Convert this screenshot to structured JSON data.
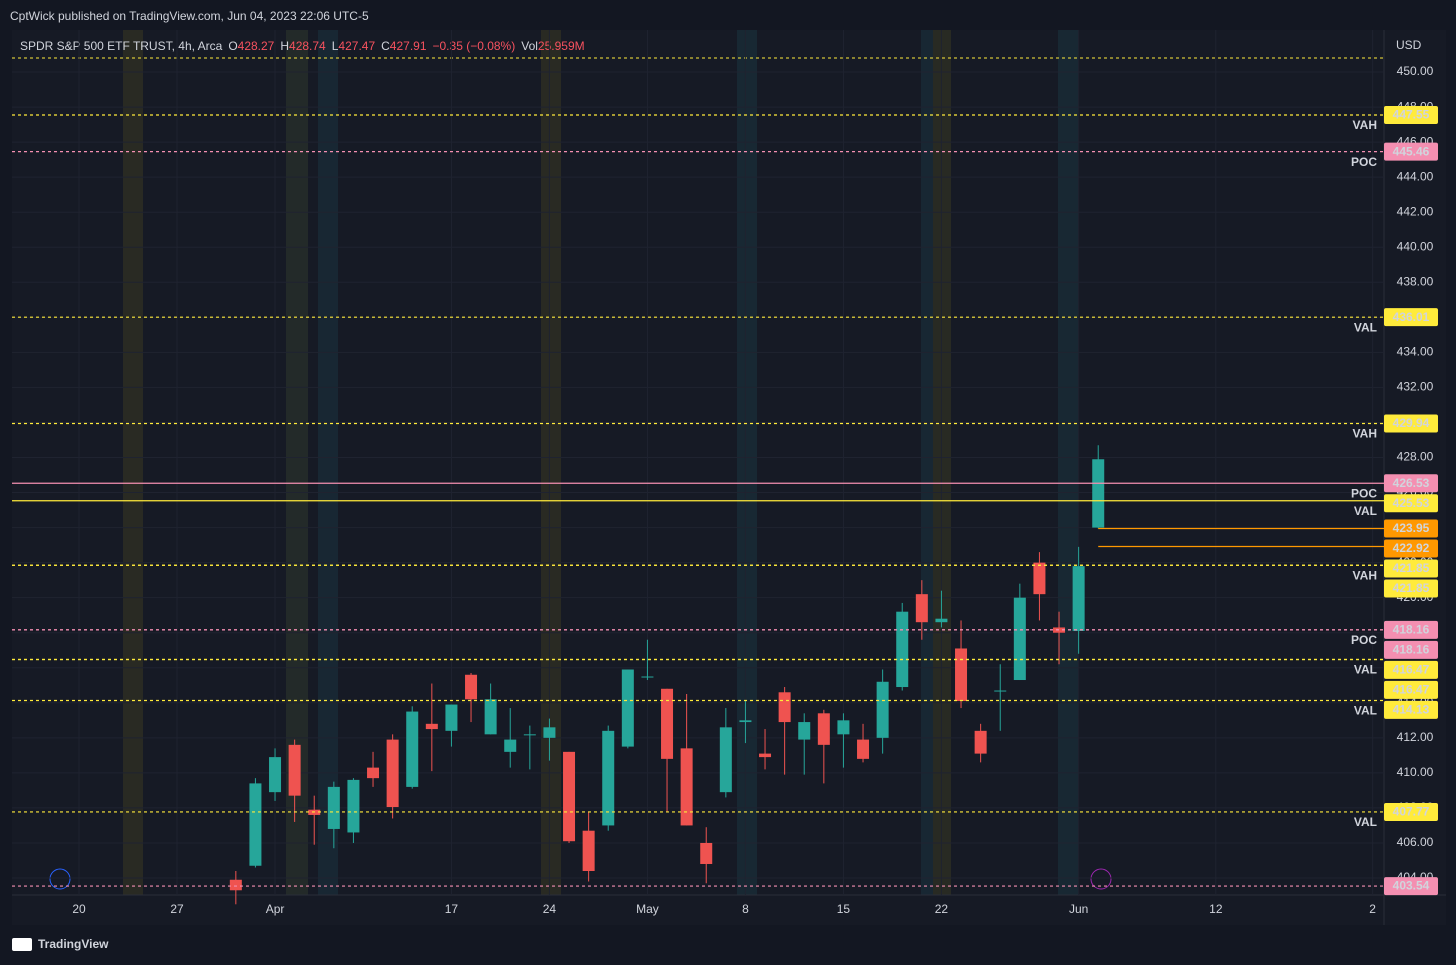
{
  "header": {
    "publisher": "CptWick published on TradingView.com, Jun 04, 2023 22:06 UTC-5"
  },
  "footer": {
    "brand": "TradingView"
  },
  "chart_data": {
    "type": "candlestick",
    "symbol": "SPDR S&P 500 ETF TRUST, 4h, Arca",
    "legend": {
      "o_label": "O",
      "open": 428.27,
      "h_label": "H",
      "high": 428.74,
      "l_label": "L",
      "low": 427.47,
      "c_label": "C",
      "close": 427.91,
      "change": "−0.35 (−0.08%)",
      "vol_label": "Vol",
      "volume": "25.959M"
    },
    "currency": "USD",
    "up_color": "#26a69a",
    "down_color": "#ef5350",
    "ylim": [
      403.03,
      452.4
    ],
    "yticks": [
      {
        "value": 404,
        "label": "404.00"
      },
      {
        "value": 406,
        "label": "406.00"
      },
      {
        "value": 408,
        "label": "408.00"
      },
      {
        "value": 410,
        "label": "410.00"
      },
      {
        "value": 412,
        "label": "412.00"
      },
      {
        "value": 414,
        "label": "414.00"
      },
      {
        "value": 416,
        "label": "416.00"
      },
      {
        "value": 418,
        "label": "418.00"
      },
      {
        "value": 420,
        "label": "420.00"
      },
      {
        "value": 422,
        "label": "422.00"
      },
      {
        "value": 424,
        "label": "424.00"
      },
      {
        "value": 426,
        "label": "426.00"
      },
      {
        "value": 428,
        "label": "428.00"
      },
      {
        "value": 430,
        "label": "430.00"
      },
      {
        "value": 432,
        "label": "432.00"
      },
      {
        "value": 434,
        "label": "434.00"
      },
      {
        "value": 436,
        "label": "436.00"
      },
      {
        "value": 438,
        "label": "438.00"
      },
      {
        "value": 440,
        "label": "440.00"
      },
      {
        "value": 442,
        "label": "442.00"
      },
      {
        "value": 444,
        "label": "444.00"
      },
      {
        "value": 446,
        "label": "446.00"
      },
      {
        "value": 448,
        "label": "448.00"
      },
      {
        "value": 450,
        "label": "450.00"
      }
    ],
    "xlim": [
      -3.42,
      66.58
    ],
    "xticks": [
      {
        "value": 0,
        "label": "20"
      },
      {
        "value": 5,
        "label": "27"
      },
      {
        "value": 10,
        "label": "Apr"
      },
      {
        "value": 19,
        "label": "17"
      },
      {
        "value": 24,
        "label": "24"
      },
      {
        "value": 29,
        "label": "May"
      },
      {
        "value": 34,
        "label": "8"
      },
      {
        "value": 39,
        "label": "15"
      },
      {
        "value": 44,
        "label": "22"
      },
      {
        "value": 51,
        "label": "Jun"
      },
      {
        "value": 58,
        "label": "12"
      },
      {
        "value": 66,
        "label": "2"
      }
    ],
    "grid": true,
    "x": [
      8,
      9,
      10,
      11,
      12,
      13,
      14,
      15,
      16,
      17,
      18,
      19,
      20,
      21,
      22,
      23,
      24,
      25,
      26,
      27,
      28,
      29,
      30,
      31,
      32,
      33,
      34,
      35,
      36,
      37,
      38,
      39,
      40,
      41,
      42,
      43,
      44,
      45,
      46,
      47,
      48,
      49,
      50,
      51,
      52
    ],
    "open": [
      403.9,
      404.7,
      408.9,
      411.6,
      407.9,
      406.8,
      406.6,
      410.3,
      411.9,
      409.2,
      412.8,
      412.4,
      415.6,
      412.2,
      411.2,
      412.2,
      412.0,
      411.2,
      406.7,
      407.0,
      411.5,
      415.5,
      414.8,
      411.4,
      406.0,
      408.9,
      412.9,
      411.1,
      414.6,
      411.9,
      413.4,
      412.2,
      411.9,
      412.0,
      414.9,
      420.2,
      418.6,
      417.1,
      412.4,
      414.7,
      415.3,
      422.0,
      418.3,
      418.1,
      424.0
    ],
    "high": [
      404.4,
      409.7,
      411.4,
      411.9,
      408.7,
      409.5,
      409.7,
      411.2,
      412.2,
      413.8,
      415.1,
      413.9,
      415.7,
      415.1,
      413.7,
      412.7,
      413.1,
      411.2,
      407.8,
      412.7,
      415.9,
      417.6,
      414.8,
      414.5,
      406.9,
      413.7,
      414.1,
      412.5,
      414.9,
      413.4,
      413.6,
      413.4,
      412.8,
      415.9,
      419.7,
      421.0,
      420.4,
      418.7,
      412.8,
      416.2,
      420.8,
      422.6,
      419.2,
      422.9,
      428.7
    ],
    "low": [
      402.5,
      404.6,
      408.4,
      407.2,
      405.9,
      405.7,
      406.0,
      409.2,
      407.4,
      409.1,
      410.1,
      411.5,
      412.9,
      412.2,
      410.3,
      410.2,
      410.7,
      406.0,
      403.8,
      406.7,
      411.4,
      415.3,
      407.8,
      407.0,
      403.7,
      408.6,
      411.7,
      410.2,
      409.9,
      409.9,
      409.4,
      410.3,
      410.6,
      411.1,
      414.7,
      417.6,
      418.3,
      413.7,
      410.6,
      412.4,
      415.3,
      418.7,
      416.2,
      416.8,
      423.95
    ],
    "close": [
      403.3,
      409.4,
      410.9,
      408.7,
      407.6,
      409.2,
      409.6,
      409.7,
      408.05,
      413.5,
      412.5,
      413.9,
      414.2,
      414.2,
      411.9,
      412.2,
      412.6,
      406.1,
      404.4,
      412.4,
      415.9,
      415.5,
      410.8,
      407.0,
      404.8,
      412.6,
      413.0,
      410.9,
      412.9,
      412.9,
      411.6,
      413.0,
      410.8,
      415.2,
      419.2,
      418.6,
      418.8,
      414.1,
      411.1,
      414.7,
      420.0,
      420.2,
      418.0,
      421.8,
      427.9
    ],
    "levels": [
      {
        "price": 447.55,
        "style": "dotted",
        "color": "#ffeb3b",
        "tag": "VAH"
      },
      {
        "price": 445.46,
        "style": "dotted",
        "color": "#f48fb1",
        "tag": "POC"
      },
      {
        "price": 436.01,
        "style": "dotted",
        "color": "#ffeb3b",
        "tag": "VAL"
      },
      {
        "price": 429.94,
        "style": "dotted",
        "color": "#ffeb3b",
        "tag": "VAH"
      },
      {
        "price": 426.53,
        "style": "solid",
        "color": "#f48fb1",
        "tag": "POC"
      },
      {
        "price": 425.53,
        "style": "solid",
        "color": "#ffeb3b",
        "tag": "VAL"
      },
      {
        "price": 423.95,
        "style": "ray",
        "color": "#ff9800"
      },
      {
        "price": 422.92,
        "style": "ray",
        "color": "#ff9800"
      },
      {
        "price": 421.85,
        "style": "dotted",
        "color": "#ffeb3b",
        "tag": "VAH"
      },
      {
        "price": 421.85,
        "style": "dotted",
        "color": "#ffeb3b"
      },
      {
        "price": 418.16,
        "style": "dotted",
        "color": "#f48fb1",
        "tag": "POC"
      },
      {
        "price": 418.16,
        "style": "dotted",
        "color": "#f48fb1"
      },
      {
        "price": 416.47,
        "style": "dotted",
        "color": "#ffeb3b",
        "tag": "VAL"
      },
      {
        "price": 416.47,
        "style": "dotted",
        "color": "#ffeb3b"
      },
      {
        "price": 414.13,
        "style": "dotted",
        "color": "#ffeb3b",
        "tag": "VAL"
      },
      {
        "price": 407.77,
        "style": "dotted",
        "color": "#ffeb3b",
        "tag": "VAL"
      },
      {
        "price": 403.54,
        "style": "dotted",
        "color": "#f48fb1"
      }
    ]
  }
}
